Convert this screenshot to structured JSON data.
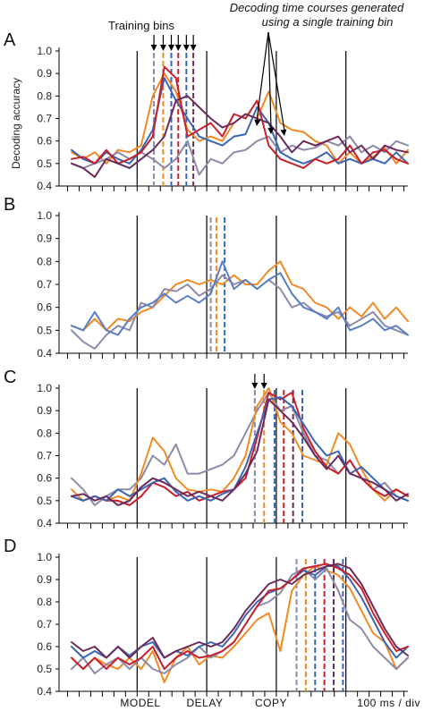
{
  "colors": {
    "orange": "#f08a24",
    "purple_light": "#8c8aa8",
    "blue": "#3c64b4",
    "red": "#c8202a",
    "purple_dark": "#6b2a5a",
    "blue_mid": "#5a7ec4"
  },
  "ylabel": "Decoding accuracy",
  "xlabels": {
    "model": "MODEL",
    "delay": "DELAY",
    "copy": "COPY",
    "scale": "100 ms / div"
  },
  "annotations": {
    "training_bins": "Training bins",
    "decoding_line1": "Decoding time courses generated",
    "decoding_line2": "using a single training bin"
  },
  "chart_data": [
    {
      "panel": "A",
      "type": "line",
      "ylim": [
        0.4,
        1.0
      ],
      "yticks": [
        "0.4",
        "0.5",
        "0.6",
        "0.7",
        "0.8",
        "0.9",
        "1.0"
      ],
      "n_bins": 30,
      "epoch_bins": [
        6,
        12,
        18,
        24
      ],
      "training_bins": [
        {
          "bin": 7.1,
          "color": "purple_light"
        },
        {
          "bin": 7.9,
          "color": "orange"
        },
        {
          "bin": 8.6,
          "color": "blue"
        },
        {
          "bin": 9.2,
          "color": "red"
        },
        {
          "bin": 9.9,
          "color": "blue"
        },
        {
          "bin": 10.5,
          "color": "purple_dark"
        }
      ],
      "series": [
        {
          "color": "orange",
          "values": [
            0.55,
            0.52,
            0.55,
            0.5,
            0.56,
            0.55,
            0.58,
            0.8,
            0.9,
            0.82,
            0.65,
            0.6,
            0.62,
            0.6,
            0.68,
            0.72,
            0.7,
            0.82,
            0.68,
            0.65,
            0.64,
            0.6,
            0.58,
            0.5,
            0.55,
            0.5,
            0.53,
            0.57,
            0.5,
            0.56
          ]
        },
        {
          "color": "purple_light",
          "values": [
            0.5,
            0.48,
            0.5,
            0.52,
            0.55,
            0.52,
            0.55,
            0.52,
            0.48,
            0.52,
            0.6,
            0.45,
            0.52,
            0.5,
            0.55,
            0.56,
            0.6,
            0.62,
            0.55,
            0.58,
            0.56,
            0.57,
            0.6,
            0.58,
            0.62,
            0.55,
            0.58,
            0.55,
            0.6,
            0.58
          ]
        },
        {
          "color": "blue",
          "values": [
            0.56,
            0.52,
            0.5,
            0.55,
            0.52,
            0.5,
            0.56,
            0.65,
            0.88,
            0.78,
            0.7,
            0.62,
            0.6,
            0.58,
            0.62,
            0.63,
            0.75,
            0.68,
            0.55,
            0.52,
            0.5,
            0.52,
            0.55,
            0.5,
            0.52,
            0.5,
            0.52,
            0.5,
            0.55,
            0.5
          ]
        },
        {
          "color": "red",
          "values": [
            0.52,
            0.53,
            0.5,
            0.56,
            0.5,
            0.52,
            0.55,
            0.62,
            0.93,
            0.88,
            0.62,
            0.65,
            0.68,
            0.62,
            0.72,
            0.7,
            0.78,
            0.58,
            0.52,
            0.5,
            0.48,
            0.52,
            0.5,
            0.52,
            0.58,
            0.5,
            0.55,
            0.56,
            0.52,
            0.5
          ]
        },
        {
          "color": "purple_dark",
          "values": [
            0.5,
            0.48,
            0.44,
            0.52,
            0.5,
            0.48,
            0.52,
            0.56,
            0.62,
            0.78,
            0.8,
            0.75,
            0.7,
            0.66,
            0.68,
            0.72,
            0.7,
            0.68,
            0.62,
            0.55,
            0.6,
            0.58,
            0.6,
            0.62,
            0.55,
            0.58,
            0.52,
            0.58,
            0.56,
            0.55
          ]
        }
      ]
    },
    {
      "panel": "B",
      "type": "line",
      "ylim": [
        0.4,
        1.0
      ],
      "yticks": [
        "0.4",
        "0.5",
        "0.6",
        "0.7",
        "0.8",
        "0.9",
        "1.0"
      ],
      "n_bins": 30,
      "epoch_bins": [
        6,
        12,
        18,
        24
      ],
      "training_bins": [
        {
          "bin": 12.0,
          "color": "purple_light"
        },
        {
          "bin": 12.5,
          "color": "orange"
        },
        {
          "bin": 13.2,
          "color": "blue"
        }
      ],
      "series": [
        {
          "color": "orange",
          "values": [
            0.52,
            0.5,
            0.55,
            0.5,
            0.55,
            0.54,
            0.58,
            0.6,
            0.65,
            0.7,
            0.72,
            0.7,
            0.72,
            0.7,
            0.74,
            0.7,
            0.7,
            0.76,
            0.8,
            0.7,
            0.68,
            0.62,
            0.6,
            0.55,
            0.6,
            0.56,
            0.62,
            0.55,
            0.6,
            0.54
          ]
        },
        {
          "color": "purple_light",
          "values": [
            0.5,
            0.45,
            0.42,
            0.48,
            0.52,
            0.5,
            0.62,
            0.6,
            0.68,
            0.67,
            0.7,
            0.65,
            0.68,
            0.74,
            0.7,
            0.72,
            0.68,
            0.72,
            0.68,
            0.6,
            0.62,
            0.58,
            0.56,
            0.58,
            0.52,
            0.55,
            0.58,
            0.52,
            0.5,
            0.48
          ]
        },
        {
          "color": "blue_mid",
          "values": [
            0.52,
            0.5,
            0.58,
            0.5,
            0.48,
            0.55,
            0.6,
            0.62,
            0.66,
            0.62,
            0.65,
            0.62,
            0.66,
            0.8,
            0.68,
            0.72,
            0.68,
            0.72,
            0.75,
            0.66,
            0.6,
            0.58,
            0.55,
            0.6,
            0.5,
            0.52,
            0.55,
            0.5,
            0.52,
            0.48
          ]
        }
      ]
    },
    {
      "panel": "C",
      "type": "line",
      "ylim": [
        0.4,
        1.0
      ],
      "yticks": [
        "0.4",
        "0.5",
        "0.6",
        "0.7",
        "0.8",
        "0.9",
        "1.0"
      ],
      "n_bins": 30,
      "epoch_bins": [
        6,
        12,
        18,
        24
      ],
      "training_bins": [
        {
          "bin": 15.8,
          "color": "purple_light"
        },
        {
          "bin": 16.6,
          "color": "orange"
        },
        {
          "bin": 17.5,
          "color": "blue"
        },
        {
          "bin": 18.3,
          "color": "red"
        },
        {
          "bin": 19.1,
          "color": "purple_dark"
        },
        {
          "bin": 19.9,
          "color": "blue"
        }
      ],
      "series": [
        {
          "color": "purple_light",
          "values": [
            0.6,
            0.55,
            0.48,
            0.52,
            0.55,
            0.55,
            0.6,
            0.7,
            0.66,
            0.75,
            0.62,
            0.62,
            0.64,
            0.66,
            0.7,
            0.8,
            0.9,
            0.98,
            0.9,
            0.92,
            0.8,
            0.7,
            0.68,
            0.62,
            0.68,
            0.6,
            0.55,
            0.58,
            0.52,
            0.5
          ]
        },
        {
          "color": "orange",
          "values": [
            0.55,
            0.5,
            0.52,
            0.5,
            0.52,
            0.5,
            0.62,
            0.78,
            0.72,
            0.6,
            0.55,
            0.54,
            0.55,
            0.54,
            0.6,
            0.7,
            0.92,
            1.0,
            0.85,
            0.8,
            0.7,
            0.68,
            0.66,
            0.8,
            0.75,
            0.64,
            0.55,
            0.5,
            0.55,
            0.52
          ]
        },
        {
          "color": "red",
          "values": [
            0.52,
            0.5,
            0.52,
            0.5,
            0.5,
            0.48,
            0.52,
            0.58,
            0.56,
            0.52,
            0.54,
            0.5,
            0.52,
            0.54,
            0.55,
            0.6,
            0.78,
            0.98,
            0.95,
            0.98,
            0.82,
            0.72,
            0.65,
            0.62,
            0.68,
            0.6,
            0.55,
            0.52,
            0.55,
            0.52
          ]
        },
        {
          "color": "blue",
          "values": [
            0.52,
            0.5,
            0.52,
            0.5,
            0.55,
            0.52,
            0.55,
            0.58,
            0.6,
            0.54,
            0.5,
            0.52,
            0.5,
            0.53,
            0.55,
            0.65,
            0.8,
            0.95,
            0.96,
            0.92,
            0.84,
            0.76,
            0.7,
            0.72,
            0.62,
            0.65,
            0.6,
            0.55,
            0.52,
            0.5
          ]
        },
        {
          "color": "purple_dark",
          "values": [
            0.52,
            0.53,
            0.5,
            0.52,
            0.48,
            0.5,
            0.56,
            0.6,
            0.58,
            0.55,
            0.52,
            0.54,
            0.52,
            0.5,
            0.55,
            0.62,
            0.72,
            0.95,
            0.9,
            0.85,
            0.78,
            0.7,
            0.64,
            0.7,
            0.62,
            0.6,
            0.58,
            0.55,
            0.5,
            0.53
          ]
        }
      ]
    },
    {
      "panel": "D",
      "type": "line",
      "ylim": [
        0.4,
        1.0
      ],
      "yticks": [
        "0.4",
        "0.5",
        "0.6",
        "0.7",
        "0.8",
        "0.9",
        "1.0"
      ],
      "n_bins": 30,
      "epoch_bins": [
        6,
        12,
        18,
        24
      ],
      "training_bins": [
        {
          "bin": 19.4,
          "color": "purple_light"
        },
        {
          "bin": 20.2,
          "color": "orange"
        },
        {
          "bin": 21.0,
          "color": "blue"
        },
        {
          "bin": 21.8,
          "color": "red"
        },
        {
          "bin": 22.6,
          "color": "purple_dark"
        },
        {
          "bin": 23.4,
          "color": "blue"
        }
      ],
      "series": [
        {
          "color": "orange",
          "values": [
            0.55,
            0.5,
            0.55,
            0.52,
            0.5,
            0.55,
            0.5,
            0.58,
            0.44,
            0.55,
            0.6,
            0.52,
            0.56,
            0.55,
            0.6,
            0.66,
            0.72,
            0.75,
            0.58,
            0.85,
            0.92,
            0.96,
            0.94,
            0.92,
            0.86,
            0.76,
            0.66,
            0.62,
            0.5,
            0.55
          ]
        },
        {
          "color": "purple_light",
          "values": [
            0.5,
            0.55,
            0.48,
            0.52,
            0.55,
            0.5,
            0.55,
            0.5,
            0.48,
            0.52,
            0.55,
            0.6,
            0.55,
            0.58,
            0.62,
            0.7,
            0.78,
            0.8,
            0.84,
            0.92,
            0.95,
            0.9,
            0.95,
            0.85,
            0.72,
            0.68,
            0.6,
            0.55,
            0.5,
            0.55
          ]
        },
        {
          "color": "blue",
          "values": [
            0.6,
            0.55,
            0.58,
            0.55,
            0.6,
            0.56,
            0.6,
            0.62,
            0.55,
            0.58,
            0.56,
            0.6,
            0.62,
            0.6,
            0.66,
            0.74,
            0.8,
            0.84,
            0.86,
            0.9,
            0.94,
            0.92,
            0.96,
            0.96,
            0.9,
            0.82,
            0.72,
            0.62,
            0.55,
            0.6
          ]
        },
        {
          "color": "red",
          "values": [
            0.55,
            0.5,
            0.55,
            0.5,
            0.55,
            0.52,
            0.55,
            0.6,
            0.5,
            0.55,
            0.58,
            0.55,
            0.56,
            0.58,
            0.62,
            0.7,
            0.78,
            0.85,
            0.86,
            0.9,
            0.95,
            0.96,
            0.97,
            0.95,
            0.92,
            0.86,
            0.75,
            0.66,
            0.58,
            0.6
          ]
        },
        {
          "color": "purple_dark",
          "values": [
            0.62,
            0.58,
            0.6,
            0.55,
            0.6,
            0.55,
            0.6,
            0.64,
            0.55,
            0.58,
            0.6,
            0.62,
            0.6,
            0.62,
            0.68,
            0.76,
            0.82,
            0.88,
            0.9,
            0.88,
            0.92,
            0.94,
            0.96,
            0.97,
            0.95,
            0.88,
            0.78,
            0.68,
            0.6,
            0.56
          ]
        }
      ]
    }
  ]
}
